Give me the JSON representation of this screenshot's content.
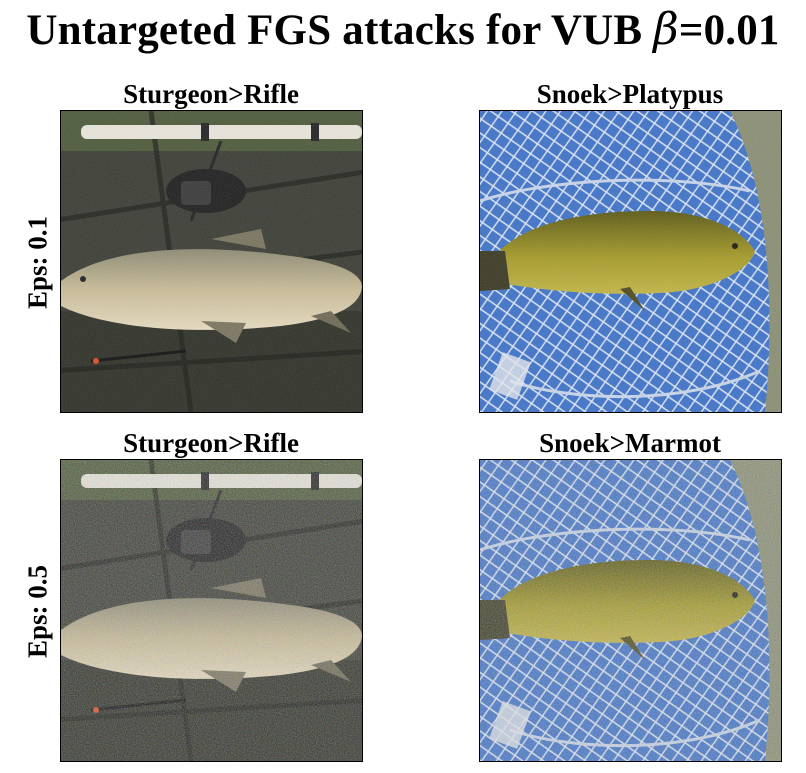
{
  "figure": {
    "title_text": "Untargeted FGS attacks for VUB ",
    "title_symbol": "β",
    "title_value": "=0.01"
  },
  "rows": [
    {
      "label": "Eps: 0.1"
    },
    {
      "label": "Eps: 0.5"
    }
  ],
  "panels": [
    {
      "title": "Sturgeon>Rifle"
    },
    {
      "title": "Snoek>Platypus"
    },
    {
      "title": "Sturgeon>Rifle"
    },
    {
      "title": "Snoek>Marmot"
    }
  ]
}
